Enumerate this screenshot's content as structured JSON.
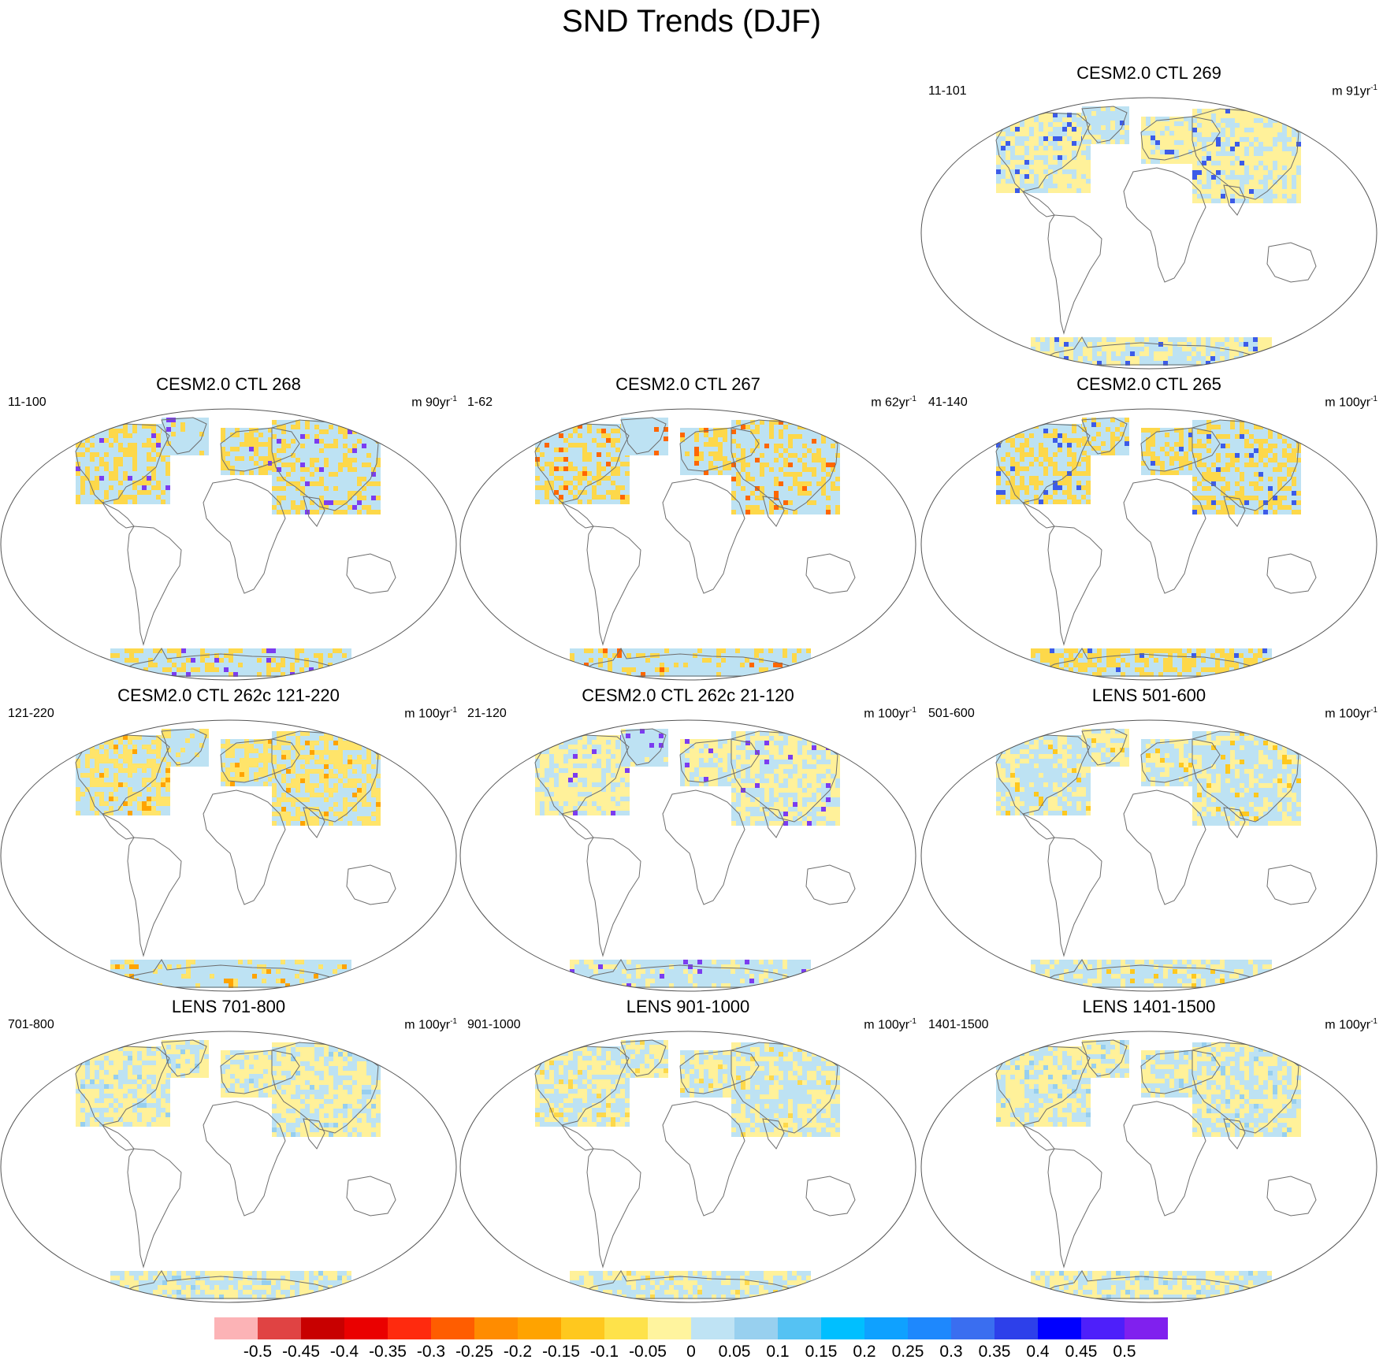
{
  "title": "SND Trends (DJF)",
  "panels": [
    {
      "title": "CESM2.0 CTL 269",
      "years": "11-101",
      "units_prefix": "m 91yr",
      "units_exp": "-1",
      "scheme": {
        "na": 0.6,
        "green": 0.3,
        "eu": 0.75,
        "asia": 0.65,
        "ant": 0.5,
        "base": "#fff19a",
        "alt": "#bde2f3",
        "accent": "#3c5be8"
      }
    },
    {
      "title": "CESM2.0 CTL 268",
      "years": "11-100",
      "units_prefix": "m 90yr",
      "units_exp": "-1",
      "scheme": {
        "na": 0.4,
        "green": 0.1,
        "eu": 0.45,
        "asia": 0.35,
        "ant": 0.3,
        "base": "#fdd84a",
        "alt": "#bde2f3",
        "accent": "#7b3cf0"
      }
    },
    {
      "title": "CESM2.0 CTL 267",
      "years": "1-62",
      "units_prefix": "m 62yr",
      "units_exp": "-1",
      "scheme": {
        "na": 0.4,
        "green": 0.0,
        "eu": 0.4,
        "asia": 0.3,
        "ant": 0.2,
        "base": "#fdd84a",
        "alt": "#bde2f3",
        "accent": "#ff6600"
      }
    },
    {
      "title": "CESM2.0 CTL 265",
      "years": "41-140",
      "units_prefix": "m 100yr",
      "units_exp": "-1",
      "scheme": {
        "na": 0.45,
        "green": 0.2,
        "eu": 0.5,
        "asia": 0.45,
        "ant": 0.6,
        "base": "#fdd84a",
        "alt": "#bde2f3",
        "accent": "#3c5be8"
      }
    },
    {
      "title": "CESM2.0 CTL 262c 121-220",
      "years": "121-220",
      "units_prefix": "m 100yr",
      "units_exp": "-1",
      "scheme": {
        "na": 0.5,
        "green": 0.2,
        "eu": 0.6,
        "asia": 0.5,
        "ant": 0.15,
        "base": "#ffe46a",
        "alt": "#bde2f3",
        "accent": "#ffa300"
      }
    },
    {
      "title": "CESM2.0 CTL 262c 21-120",
      "years": "21-120",
      "units_prefix": "m 100yr",
      "units_exp": "-1",
      "scheme": {
        "na": 0.65,
        "green": 0.05,
        "eu": 0.6,
        "asia": 0.5,
        "ant": 0.2,
        "base": "#fff19a",
        "alt": "#bde2f3",
        "accent": "#7b3cf0"
      }
    },
    {
      "title": "LENS 501-600",
      "years": "501-600",
      "units_prefix": "m 100yr",
      "units_exp": "-1",
      "scheme": {
        "na": 0.35,
        "green": 0.5,
        "eu": 0.4,
        "asia": 0.35,
        "ant": 0.3,
        "base": "#fff19a",
        "alt": "#bde2f3",
        "accent": "#ffc81e"
      }
    },
    {
      "title": "LENS 701-800",
      "years": "701-800",
      "units_prefix": "m 100yr",
      "units_exp": "-1",
      "scheme": {
        "na": 0.6,
        "green": 0.6,
        "eu": 0.7,
        "asia": 0.6,
        "ant": 0.5,
        "base": "#fff19a",
        "alt": "#bde2f3",
        "accent": "#97cfef"
      }
    },
    {
      "title": "LENS 901-1000",
      "years": "901-1000",
      "units_prefix": "m 100yr",
      "units_exp": "-1",
      "scheme": {
        "na": 0.45,
        "green": 0.5,
        "eu": 0.4,
        "asia": 0.45,
        "ant": 0.4,
        "base": "#fff19a",
        "alt": "#bde2f3",
        "accent": "#fdd84a"
      }
    },
    {
      "title": "LENS 1401-1500",
      "years": "1401-1500",
      "units_prefix": "m 100yr",
      "units_exp": "-1",
      "scheme": {
        "na": 0.55,
        "green": 0.5,
        "eu": 0.5,
        "asia": 0.55,
        "ant": 0.5,
        "base": "#fff19a",
        "alt": "#bde2f3",
        "accent": "#97cfef"
      }
    }
  ],
  "colorbar": {
    "colors": [
      "#fcb3b6",
      "#e04343",
      "#c80000",
      "#ea0000",
      "#ff2a0e",
      "#ff5d00",
      "#ff8c00",
      "#ffa300",
      "#ffc81e",
      "#fee24a",
      "#fff49e",
      "#bfe3f4",
      "#98d0ef",
      "#55c2f3",
      "#00bfff",
      "#0fa1ff",
      "#1e88fd",
      "#3a6ef0",
      "#2d40ea",
      "#0000ff",
      "#4e1ffa",
      "#8020ee"
    ],
    "labels": [
      "-0.5",
      "-0.45",
      "-0.4",
      "-0.35",
      "-0.3",
      "-0.25",
      "-0.2",
      "-0.15",
      "-0.1",
      "-0.05",
      "0",
      "0.05",
      "0.1",
      "0.15",
      "0.2",
      "0.25",
      "0.3",
      "0.35",
      "0.4",
      "0.45",
      "0.5"
    ]
  }
}
